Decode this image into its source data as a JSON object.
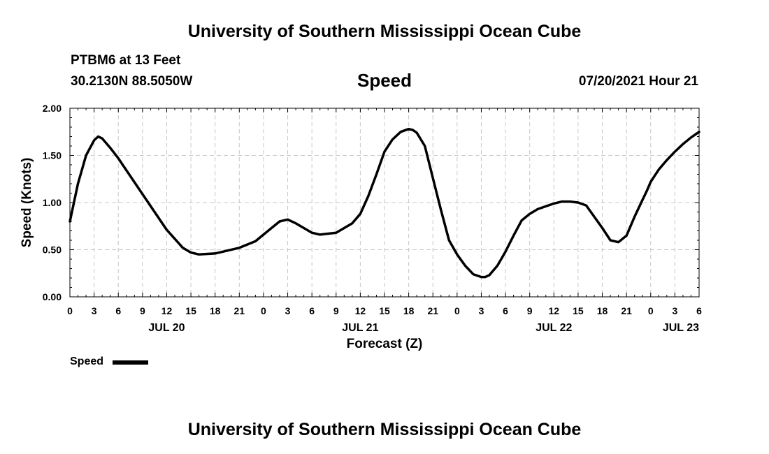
{
  "header": {
    "title": "University of Southern Mississippi Ocean Cube",
    "station": "PTBM6 at 13 Feet",
    "coords": "30.2130N  88.5050W",
    "timestamp": "07/20/2021 Hour 21"
  },
  "footer": {
    "title": "University of Southern Mississippi Ocean Cube"
  },
  "chart_data": {
    "type": "line",
    "title": "Speed",
    "xlabel": "Forecast (Z)",
    "ylabel": "Speed (Knots)",
    "ylim": [
      0,
      2
    ],
    "xlim": [
      0,
      78
    ],
    "x_unit": "hours from 2021-07-20 00Z",
    "y_ticks": [
      "0.00",
      "0.50",
      "1.00",
      "1.50",
      "2.00"
    ],
    "x_tick_labels": [
      "0",
      "3",
      "6",
      "9",
      "12",
      "15",
      "18",
      "21",
      "0",
      "3",
      "6",
      "9",
      "12",
      "15",
      "18",
      "21",
      "0",
      "3",
      "6",
      "9",
      "12",
      "15",
      "18",
      "21",
      "0",
      "3",
      "6"
    ],
    "date_labels": [
      {
        "text": "JUL 20",
        "hour": 12
      },
      {
        "text": "JUL 21",
        "hour": 36
      },
      {
        "text": "JUL 22",
        "hour": 60
      },
      {
        "text": "JUL 23",
        "hour": 78
      }
    ],
    "grid": true,
    "legend": "bottom-left",
    "series": [
      {
        "name": "Speed",
        "color": "#000000",
        "x": [
          0,
          1,
          2,
          3,
          3.5,
          4,
          5,
          6,
          9,
          12,
          14,
          15,
          16,
          18,
          21,
          23,
          24,
          26,
          27,
          28,
          30,
          31,
          33,
          35,
          36,
          37,
          38,
          39,
          40,
          41,
          42,
          42.5,
          43,
          44,
          45,
          46,
          47,
          48,
          49,
          50,
          51,
          51.5,
          52,
          53,
          54,
          55,
          56,
          57,
          58,
          60,
          61,
          62,
          63,
          64,
          66,
          67,
          68,
          69,
          70,
          71,
          71.5,
          72,
          73,
          74,
          75,
          76,
          77,
          78
        ],
        "y": [
          0.8,
          1.2,
          1.5,
          1.66,
          1.7,
          1.68,
          1.58,
          1.47,
          1.09,
          0.71,
          0.52,
          0.47,
          0.45,
          0.46,
          0.52,
          0.59,
          0.66,
          0.8,
          0.82,
          0.78,
          0.68,
          0.66,
          0.68,
          0.78,
          0.88,
          1.07,
          1.3,
          1.54,
          1.67,
          1.75,
          1.78,
          1.77,
          1.74,
          1.6,
          1.26,
          0.92,
          0.6,
          0.45,
          0.33,
          0.24,
          0.21,
          0.21,
          0.23,
          0.33,
          0.48,
          0.65,
          0.81,
          0.88,
          0.93,
          0.99,
          1.01,
          1.01,
          1.0,
          0.97,
          0.73,
          0.6,
          0.58,
          0.65,
          0.85,
          1.03,
          1.12,
          1.22,
          1.35,
          1.45,
          1.54,
          1.62,
          1.69,
          1.75
        ]
      }
    ]
  }
}
